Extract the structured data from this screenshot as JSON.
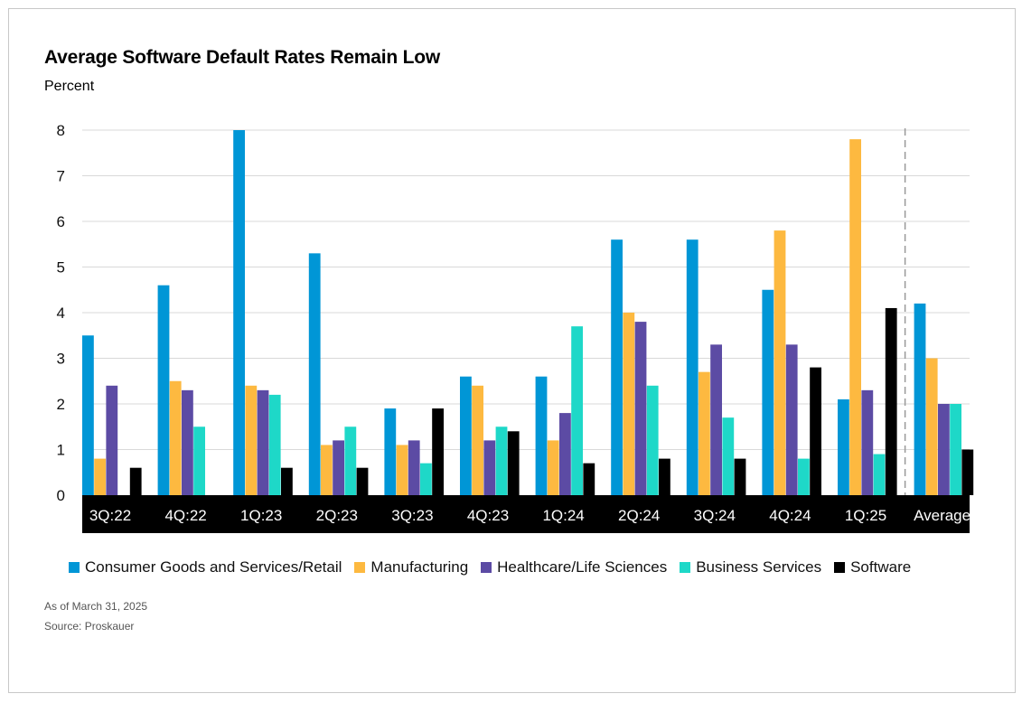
{
  "title": "Average Software Default Rates Remain Low",
  "subtitle": "Percent",
  "footnotes": {
    "as_of": "As of March 31, 2025",
    "source": "Source: Proskauer"
  },
  "chart_data": {
    "type": "bar",
    "title": "Average Software Default Rates Remain Low",
    "ylabel": "Percent",
    "ylim": [
      0,
      8
    ],
    "yticks": [
      0,
      1,
      2,
      3,
      4,
      5,
      6,
      7,
      8
    ],
    "grid": true,
    "legend_position": "bottom",
    "categories": [
      "3Q:22",
      "4Q:22",
      "1Q:23",
      "2Q:23",
      "3Q:23",
      "4Q:23",
      "1Q:24",
      "2Q:24",
      "3Q:24",
      "4Q:24",
      "1Q:25",
      "Average"
    ],
    "series": [
      {
        "name": "Consumer Goods and Services/Retail",
        "color": "#0096d6",
        "values": [
          3.5,
          4.6,
          8.0,
          5.3,
          1.9,
          2.6,
          2.6,
          5.6,
          5.6,
          4.5,
          2.1,
          4.2
        ]
      },
      {
        "name": "Manufacturing",
        "color": "#fdb940",
        "values": [
          0.8,
          2.5,
          2.4,
          1.1,
          1.1,
          2.4,
          1.2,
          4.0,
          2.7,
          5.8,
          7.8,
          3.0
        ]
      },
      {
        "name": "Healthcare/Life Sciences",
        "color": "#5c4ba4",
        "values": [
          2.4,
          2.3,
          2.3,
          1.2,
          1.2,
          1.2,
          1.8,
          3.8,
          3.3,
          3.3,
          2.3,
          2.0
        ]
      },
      {
        "name": "Business Services",
        "color": "#1ed8c8",
        "values": [
          0.0,
          1.5,
          2.2,
          1.5,
          0.7,
          1.5,
          3.7,
          2.4,
          1.7,
          0.8,
          0.9,
          2.0
        ]
      },
      {
        "name": "Software",
        "color": "#000000",
        "values": [
          0.6,
          0.0,
          0.6,
          0.6,
          1.9,
          1.4,
          0.7,
          0.8,
          0.8,
          2.8,
          4.1,
          1.0
        ]
      }
    ],
    "separator_before_category": "Average"
  }
}
